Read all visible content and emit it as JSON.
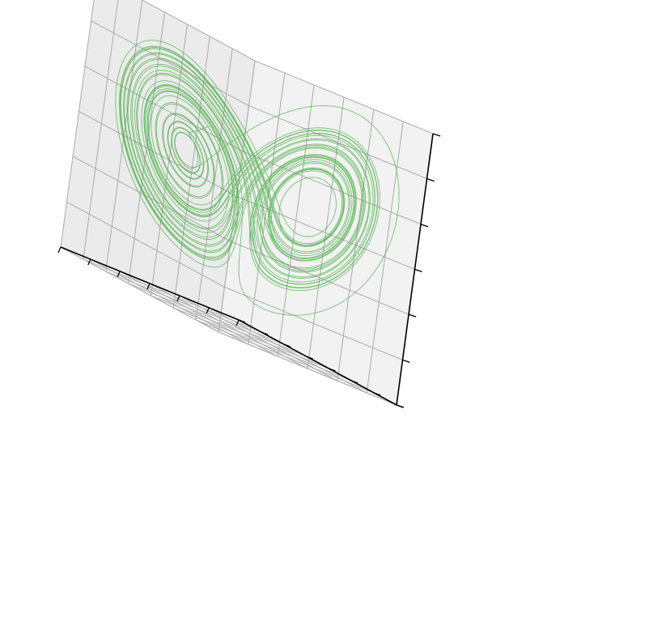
{
  "chart_data": {
    "type": "line",
    "projection": "3d",
    "title": "",
    "xlabel": "",
    "ylabel": "",
    "zlabel": "",
    "tick_labels_visible": false,
    "grid": true,
    "series": [
      {
        "kind": "lorenz-attractor",
        "parameters": {
          "sigma": 10,
          "rho": 28,
          "beta": 2.6667
        },
        "initial_state": [
          0.1,
          0.0,
          0.0
        ],
        "dt": 0.005,
        "steps": 9000,
        "color": "#4daf4a",
        "opacity": 0.75
      }
    ],
    "xlim": [
      -20,
      20
    ],
    "ylim": [
      -28,
      28
    ],
    "zlim": [
      0,
      50
    ],
    "xticks": [
      -20,
      -13.3,
      -6.7,
      0,
      6.7,
      13.3,
      20
    ],
    "yticks": [
      -28,
      -20,
      -12,
      -4,
      4,
      12,
      20,
      28
    ],
    "zticks": [
      0,
      8.3,
      16.7,
      25,
      33.3,
      41.7,
      50
    ],
    "view": {
      "elevation": 30,
      "azimuth": -60
    }
  },
  "colors": {
    "left_pane": "#ebebeb",
    "right_pane": "#f2f2f2",
    "floor_pane": "#f5f5f5",
    "grid": "#b0b0b0",
    "axis": "#000000"
  }
}
